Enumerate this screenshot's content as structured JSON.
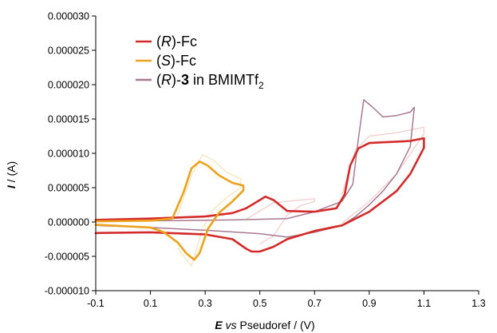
{
  "chart_data": {
    "type": "line",
    "xlabel": {
      "bold": "E",
      "italic": " vs",
      "rest": " Pseudoref / (V)"
    },
    "ylabel": {
      "bold": "I",
      "rest": " / (A)"
    },
    "xlim": [
      -0.1,
      1.3
    ],
    "ylim": [
      -1e-05,
      3e-05
    ],
    "xticks": [
      "-0.1",
      "0.1",
      "0.3",
      "0.5",
      "0.7",
      "0.9",
      "1.1",
      "1.3"
    ],
    "xtick_values": [
      -0.1,
      0.1,
      0.3,
      0.5,
      0.7,
      0.9,
      1.1,
      1.3
    ],
    "yticks": [
      "0.000030",
      "0.000025",
      "0.000020",
      "0.000015",
      "0.000010",
      "0.000005",
      "0.000000",
      "-0.000005",
      "-0.000010"
    ],
    "ytick_values": [
      3e-05,
      2.5e-05,
      2e-05,
      1.5e-05,
      1e-05,
      5e-06,
      0,
      -5e-06,
      -1e-05
    ],
    "grid": false,
    "legend_position": "top-left",
    "legend": [
      {
        "pre": "(",
        "italic": "R",
        "post": ")-Fc",
        "color": "#d42a2a"
      },
      {
        "pre": "(",
        "italic": "S",
        "post": ")-Fc",
        "color": "#eea21b"
      },
      {
        "pre": "(",
        "italic": "R",
        "mid": ")-",
        "bold": "3",
        "post": " in BMIMTf",
        "sub": "2",
        "color": "#a8798f"
      }
    ],
    "series": [
      {
        "name": "(R)-Fc",
        "color": "#d42a2a",
        "width": 2.6,
        "x": [
          -0.1,
          0.1,
          0.3,
          0.4,
          0.45,
          0.5,
          0.52,
          0.55,
          0.6,
          0.7,
          0.78,
          0.81,
          0.83,
          0.86,
          0.9,
          0.95,
          1.0,
          1.05,
          1.1,
          1.1,
          1.05,
          1.0,
          0.9,
          0.8,
          0.7,
          0.6,
          0.55,
          0.5,
          0.47,
          0.45,
          0.4,
          0.3,
          0.1,
          -0.1
        ],
        "y": [
          3e-07,
          5e-07,
          8e-07,
          1.3e-06,
          2e-06,
          3.2e-06,
          3.7e-06,
          3.2e-06,
          1.6e-06,
          1.5e-06,
          2e-06,
          4e-06,
          8.2e-06,
          1.07e-05,
          1.15e-05,
          1.16e-05,
          1.17e-05,
          1.18e-05,
          1.22e-05,
          1.08e-05,
          7e-06,
          4.5e-06,
          1.5e-06,
          -5e-07,
          -1.3e-06,
          -2.5e-06,
          -3.6e-06,
          -4.3e-06,
          -4.3e-06,
          -3.9e-06,
          -2.5e-06,
          -1.8e-06,
          -1.5e-06,
          -1.6e-06
        ]
      },
      {
        "name": "(S)-Fc",
        "color": "#eea21b",
        "width": 2.6,
        "x": [
          -0.1,
          0.1,
          0.18,
          0.22,
          0.25,
          0.28,
          0.31,
          0.35,
          0.4,
          0.44,
          0.44,
          0.4,
          0.35,
          0.31,
          0.28,
          0.26,
          0.23,
          0.2,
          0.15,
          0.1,
          -0.1
        ],
        "y": [
          1e-07,
          2e-07,
          5e-07,
          4.2e-06,
          7.8e-06,
          8.8e-06,
          8.2e-06,
          6.8e-06,
          5.7e-06,
          5.3e-06,
          4.6e-06,
          3e-06,
          1.3e-06,
          -1e-06,
          -4.5e-06,
          -5.5e-06,
          -4.5e-06,
          -3e-06,
          -1.5e-06,
          -8e-07,
          -4e-07
        ]
      },
      {
        "name": "(R)-3 in BMIMTf2",
        "color": "#a8798f",
        "width": 1.5,
        "x": [
          -0.1,
          0.2,
          0.4,
          0.6,
          0.7,
          0.8,
          0.84,
          0.86,
          0.88,
          0.91,
          0.95,
          1.0,
          1.05,
          1.065,
          1.05,
          1.0,
          0.95,
          0.9,
          0.85,
          0.8,
          0.7,
          0.6,
          0.5,
          0.3,
          0.1,
          -0.1
        ],
        "y": [
          1e-07,
          2e-07,
          3e-07,
          5e-07,
          1.5e-06,
          3e-06,
          5.5e-06,
          1.2e-05,
          1.78e-05,
          1.68e-05,
          1.53e-05,
          1.55e-05,
          1.6e-05,
          1.67e-05,
          1.1e-05,
          7e-06,
          4.5e-06,
          2.5e-06,
          8e-07,
          -5e-07,
          -1.5e-06,
          -2.2e-06,
          -1.7e-06,
          -1.2e-06,
          -8e-07,
          -5e-07
        ]
      },
      {
        "name": "",
        "color": "#f6c9c9",
        "width": 1.2,
        "x": [
          0.45,
          0.5,
          0.55,
          0.6,
          0.65,
          0.7,
          0.7,
          0.65,
          0.6,
          0.55,
          0.5
        ],
        "y": [
          4e-07,
          1.6e-06,
          2.8e-06,
          3e-06,
          3.2e-06,
          3.4e-06,
          3e-06,
          2.4e-06,
          1e-06,
          -2e-06,
          -3.2e-06
        ]
      },
      {
        "name": "",
        "color": "#f6c9c9",
        "width": 1.2,
        "x": [
          0.8,
          0.85,
          0.9,
          1.0,
          1.1,
          1.1,
          1.0,
          0.9,
          0.8
        ],
        "y": [
          4e-06,
          1.05e-05,
          1.25e-05,
          1.3e-05,
          1.38e-05,
          1.28e-05,
          7e-06,
          3e-06,
          -2e-07
        ]
      },
      {
        "name": "",
        "color": "#fbe3b6",
        "width": 1.2,
        "x": [
          0.2,
          0.25,
          0.29,
          0.33,
          0.38,
          0.43,
          0.43,
          0.38,
          0.33,
          0.29,
          0.25,
          0.2
        ],
        "y": [
          1e-06,
          6.8e-06,
          9.8e-06,
          9e-06,
          7.2e-06,
          6.3e-06,
          5e-06,
          3.6e-06,
          1.8e-06,
          -1e-06,
          -6.4e-06,
          -3.8e-06
        ]
      }
    ]
  }
}
